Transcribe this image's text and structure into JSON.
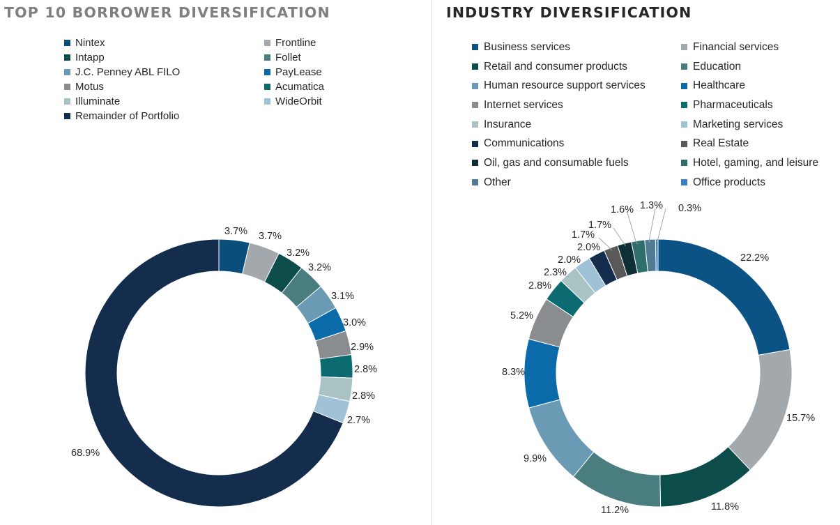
{
  "chart_data": [
    {
      "type": "pie",
      "title": "TOP 10 BORROWER DIVERSIFICATION",
      "legend_position": "top",
      "slices": [
        {
          "label": "Nintex",
          "value": 3.7,
          "display": "3.7%",
          "color": "#0a4f7c"
        },
        {
          "label": "Frontline",
          "value": 3.7,
          "display": "3.7%",
          "color": "#a3a8ad"
        },
        {
          "label": "Intapp",
          "value": 3.2,
          "display": "3.2%",
          "color": "#0c4d4b"
        },
        {
          "label": "Follet",
          "value": 3.2,
          "display": "3.2%",
          "color": "#4a7d7f"
        },
        {
          "label": "J.C. Penney ABL FILO",
          "value": 3.1,
          "display": "3.1%",
          "color": "#6b9ab4"
        },
        {
          "label": "PayLease",
          "value": 3.0,
          "display": "3.0%",
          "color": "#0b6aaa"
        },
        {
          "label": "Motus",
          "value": 2.9,
          "display": "2.9%",
          "color": "#8a8d90"
        },
        {
          "label": "Acumatica",
          "value": 2.8,
          "display": "2.8%",
          "color": "#0c6b70"
        },
        {
          "label": "Illuminate",
          "value": 2.8,
          "display": "2.8%",
          "color": "#a9c2c4"
        },
        {
          "label": "WideOrbit",
          "value": 2.7,
          "display": "2.7%",
          "color": "#9fc2d6"
        },
        {
          "label": "Remainder of Portfolio",
          "value": 68.9,
          "display": "68.9%",
          "color": "#142d4c"
        }
      ]
    },
    {
      "type": "pie",
      "title": "INDUSTRY DIVERSIFICATION",
      "legend_position": "top",
      "slices": [
        {
          "label": "Business services",
          "value": 22.2,
          "display": "22.2%",
          "color": "#0b5285"
        },
        {
          "label": "Financial services",
          "value": 15.7,
          "display": "15.7%",
          "color": "#a3a8ad"
        },
        {
          "label": "Retail and consumer products",
          "value": 11.8,
          "display": "11.8%",
          "color": "#0c4d4b"
        },
        {
          "label": "Education",
          "value": 11.2,
          "display": "11.2%",
          "color": "#4a7d7f"
        },
        {
          "label": "Human resource support services",
          "value": 9.9,
          "display": "9.9%",
          "color": "#6b9ab4"
        },
        {
          "label": "Healthcare",
          "value": 8.3,
          "display": "8.3%",
          "color": "#0b6aaa"
        },
        {
          "label": "Internet services",
          "value": 5.2,
          "display": "5.2%",
          "color": "#8a8d90"
        },
        {
          "label": "Pharmaceuticals",
          "value": 2.8,
          "display": "2.8%",
          "color": "#0c6b70"
        },
        {
          "label": "Insurance",
          "value": 2.3,
          "display": "2.3%",
          "color": "#a9c2c4"
        },
        {
          "label": "Marketing services",
          "value": 2.0,
          "display": "2.0%",
          "color": "#9fc2d6"
        },
        {
          "label": "Communications",
          "value": 2.0,
          "display": "2.0%",
          "color": "#142d4c"
        },
        {
          "label": "Real Estate",
          "value": 1.7,
          "display": "1.7%",
          "color": "#595959"
        },
        {
          "label": "Oil, gas and consumable fuels",
          "value": 1.7,
          "display": "1.7%",
          "color": "#0e2f35"
        },
        {
          "label": "Hotel, gaming, and leisure",
          "value": 1.6,
          "display": "1.6%",
          "color": "#2f6e6d"
        },
        {
          "label": "Other",
          "value": 1.3,
          "display": "1.3%",
          "color": "#4f7c92"
        },
        {
          "label": "Office products",
          "value": 0.3,
          "display": "0.3%",
          "color": "#3a7fc1"
        }
      ]
    }
  ]
}
